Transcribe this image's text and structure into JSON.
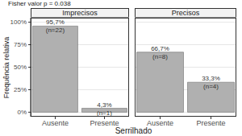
{
  "title": "Fisher valor p = 0.038",
  "x_label": "Serrilhado",
  "y_label": "Frequência relativa",
  "chart_data": [
    {
      "type": "bar",
      "subtitle": "Imprecisos",
      "categories": [
        "Ausente",
        "Presente"
      ],
      "values": [
        95.7,
        4.3
      ],
      "value_labels": [
        "95,7%",
        "4,3%"
      ],
      "count_labels": [
        "(n=22)",
        "(n=1)"
      ],
      "color": "#b0b0b0",
      "ylim": [
        -5,
        105
      ],
      "yticks": [
        {
          "value": 0,
          "label": "0%"
        },
        {
          "value": 25,
          "label": "25%"
        },
        {
          "value": 50,
          "label": "50%"
        },
        {
          "value": 75,
          "label": "75%"
        },
        {
          "value": 100,
          "label": "100%"
        }
      ],
      "grid": true,
      "data_labels": true
    },
    {
      "type": "bar",
      "subtitle": "Precisos",
      "categories": [
        "Ausente",
        "Presente"
      ],
      "values": [
        66.7,
        33.3
      ],
      "value_labels": [
        "66,7%",
        "33,3%"
      ],
      "count_labels": [
        "(n=8)",
        "(n=4)"
      ],
      "color": "#b0b0b0",
      "ylim": [
        -5,
        105
      ],
      "yticks": [
        {
          "value": 0,
          "label": "0%"
        },
        {
          "value": 25,
          "label": "25%"
        },
        {
          "value": 50,
          "label": "50%"
        },
        {
          "value": 75,
          "label": "75%"
        },
        {
          "value": 100,
          "label": "100%"
        }
      ],
      "grid": true,
      "data_labels": true,
      "tick_labels": "x"
    }
  ]
}
